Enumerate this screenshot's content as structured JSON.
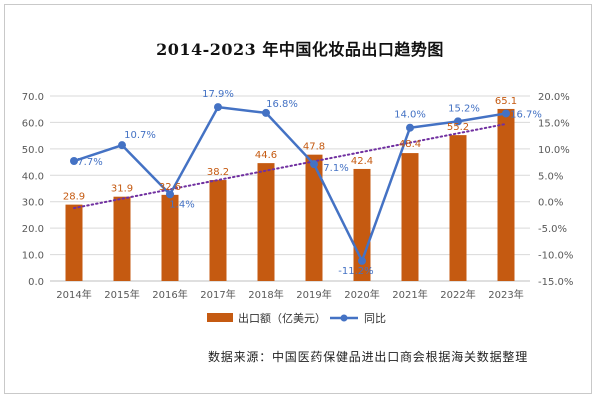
{
  "title": "2014-2023 年中国化妆品出口趋势图",
  "source": "数据来源：中国医药保健品进出口商会根据海关数据整理",
  "colors": {
    "bar": "#c55a11",
    "line": "#4472c4",
    "bar_label": "#c55a11",
    "line_label": "#4472c4",
    "trend": "#7030a0",
    "axis_text": "#595959",
    "grid": "#d9d9d9"
  },
  "chart_data": {
    "type": "bar",
    "categories": [
      "2014年",
      "2015年",
      "2016年",
      "2017年",
      "2018年",
      "2019年",
      "2020年",
      "2021年",
      "2022年",
      "2023年"
    ],
    "series": [
      {
        "name": "出口额（亿美元）",
        "type": "bar",
        "axis": "left",
        "values": [
          28.9,
          31.9,
          32.6,
          38.2,
          44.6,
          47.8,
          42.4,
          48.4,
          55.2,
          65.1
        ],
        "labels": [
          "28.9",
          "31.9",
          "32.6",
          "38.2",
          "44.6",
          "47.8",
          "42.4",
          "48.4",
          "55.2",
          "65.1"
        ]
      },
      {
        "name": "同比",
        "type": "line",
        "axis": "right",
        "values": [
          7.7,
          10.7,
          1.4,
          17.9,
          16.8,
          7.1,
          -11.2,
          14.0,
          15.2,
          16.7
        ],
        "labels": [
          "7.7%",
          "10.7%",
          "1.4%",
          "17.9%",
          "16.8%",
          "7.1%",
          "-11.2%",
          "14.0%",
          "15.2%",
          "16.7%"
        ]
      }
    ],
    "trendline": {
      "series": "出口额（亿美元）",
      "style": "dotted"
    },
    "y_left": {
      "ylim": [
        0,
        70
      ],
      "ticks": [
        "0.0",
        "10.0",
        "20.0",
        "30.0",
        "40.0",
        "50.0",
        "60.0",
        "70.0"
      ]
    },
    "y_right": {
      "ylim": [
        -15,
        20
      ],
      "ticks": [
        "-15.0%",
        "-10.0%",
        "-5.0%",
        "0.0%",
        "5.0%",
        "10.0%",
        "15.0%",
        "20.0%"
      ]
    },
    "grid": true,
    "legend_position": "bottom"
  }
}
